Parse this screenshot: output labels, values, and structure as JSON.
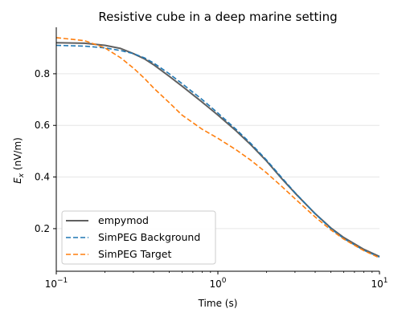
{
  "chart_data": {
    "type": "line",
    "title": "Resistive cube in a deep marine setting",
    "xlabel": "Time (s)",
    "ylabel_main": "E",
    "ylabel_sub": "x",
    "ylabel_unit": " (nV/m)",
    "xscale": "log",
    "xlim": [
      0.1,
      10
    ],
    "ylim": [
      0.035,
      0.98
    ],
    "x_ticks": [
      {
        "value": 0.1,
        "base": "10",
        "exp": "−1"
      },
      {
        "value": 1,
        "base": "10",
        "exp": "0"
      },
      {
        "value": 10,
        "base": "10",
        "exp": "1"
      }
    ],
    "y_ticks": [
      0.2,
      0.4,
      0.6,
      0.8
    ],
    "y_tick_labels": [
      "0.2",
      "0.4",
      "0.6",
      "0.8"
    ],
    "grid": "horizontal",
    "legend_position": "lower-left",
    "series": [
      {
        "name": "empymod",
        "color": "#606060",
        "style": "solid",
        "x": [
          0.1,
          0.15,
          0.2,
          0.25,
          0.3,
          0.35,
          0.4,
          0.5,
          0.6,
          0.8,
          1.0,
          1.3,
          1.6,
          2.0,
          2.5,
          3.0,
          4.0,
          5.0,
          6.0,
          8.0,
          10.0
        ],
        "y": [
          0.92,
          0.918,
          0.91,
          0.898,
          0.878,
          0.858,
          0.835,
          0.79,
          0.752,
          0.69,
          0.64,
          0.578,
          0.525,
          0.462,
          0.392,
          0.338,
          0.258,
          0.203,
          0.166,
          0.12,
          0.092
        ]
      },
      {
        "name": "SimPEG Background",
        "color": "#1f77b4",
        "style": "dashed",
        "x": [
          0.1,
          0.15,
          0.2,
          0.25,
          0.3,
          0.35,
          0.4,
          0.5,
          0.6,
          0.8,
          1.0,
          1.3,
          1.6,
          2.0,
          2.5,
          3.0,
          4.0,
          5.0,
          6.0,
          8.0,
          10.0
        ],
        "y": [
          0.91,
          0.907,
          0.9,
          0.89,
          0.878,
          0.862,
          0.842,
          0.8,
          0.762,
          0.7,
          0.648,
          0.584,
          0.53,
          0.466,
          0.396,
          0.34,
          0.258,
          0.2,
          0.162,
          0.116,
          0.09
        ]
      },
      {
        "name": "SimPEG Target",
        "color": "#ff7f0e",
        "style": "dashed",
        "x": [
          0.1,
          0.15,
          0.2,
          0.25,
          0.3,
          0.35,
          0.4,
          0.5,
          0.6,
          0.8,
          1.0,
          1.3,
          1.6,
          2.0,
          2.5,
          3.0,
          4.0,
          5.0,
          6.0,
          8.0,
          10.0
        ],
        "y": [
          0.94,
          0.928,
          0.9,
          0.862,
          0.822,
          0.783,
          0.745,
          0.688,
          0.64,
          0.585,
          0.55,
          0.505,
          0.465,
          0.416,
          0.362,
          0.316,
          0.245,
          0.195,
          0.16,
          0.115,
          0.087
        ]
      }
    ]
  }
}
